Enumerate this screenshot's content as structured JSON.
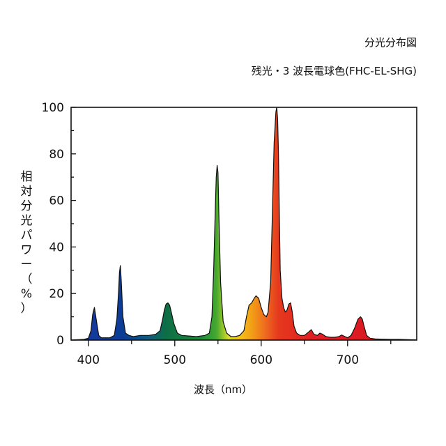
{
  "header": {
    "title": "分光分布図",
    "subtitle": "残光・3 波長電球色(FHC-EL-SHG)"
  },
  "chart_data": {
    "type": "area",
    "xlabel": "波長（nm）",
    "ylabel": "相対分光パワー（%）",
    "ylabel_chars": [
      "相",
      "対",
      "分",
      "光",
      "パ",
      "ワ",
      "ー",
      "（",
      "%",
      "）"
    ],
    "xlim": [
      380,
      780
    ],
    "ylim": [
      0,
      100
    ],
    "x_ticks": [
      400,
      500,
      600,
      700
    ],
    "y_ticks": [
      0,
      20,
      40,
      60,
      80,
      100
    ],
    "grid": false,
    "fill": "visible-spectrum colors",
    "series": [
      {
        "x": [
          380,
          395,
          400,
          403,
          405,
          407,
          409,
          412,
          415,
          420,
          425,
          430,
          433,
          435,
          436,
          437,
          438,
          440,
          443,
          447,
          452,
          460,
          470,
          478,
          483,
          486,
          488,
          490,
          492,
          494,
          496,
          499,
          503,
          508,
          515,
          525,
          535,
          540,
          543,
          545,
          547,
          548,
          549,
          550,
          551,
          553,
          556,
          560,
          565,
          570,
          575,
          580,
          583,
          586,
          589,
          592,
          594,
          597,
          600,
          603,
          606,
          608,
          611,
          613,
          615,
          617,
          618,
          619,
          620,
          621,
          622,
          624,
          626,
          628,
          630,
          632,
          634,
          636,
          638,
          641,
          645,
          650,
          655,
          658,
          661,
          665,
          668,
          671,
          675,
          680,
          685,
          690,
          693,
          697,
          700,
          704,
          708,
          712,
          715,
          717,
          719,
          722,
          726,
          732,
          740,
          750,
          760,
          770,
          780
        ],
        "y": [
          0,
          0.3,
          0.8,
          4,
          11,
          14,
          9,
          2,
          1,
          1,
          1,
          2,
          9,
          21,
          29,
          32,
          26,
          10,
          3,
          2,
          1.5,
          2,
          2,
          2.5,
          4,
          9,
          13,
          15.5,
          16,
          15,
          12,
          7,
          3,
          2,
          1.8,
          1.5,
          2,
          3,
          10,
          30,
          58,
          70,
          75,
          72,
          55,
          25,
          8,
          3,
          1.5,
          1.5,
          2,
          4,
          10,
          15,
          16,
          18,
          19,
          18,
          14,
          11,
          10,
          12,
          25,
          55,
          85,
          98,
          100,
          95,
          80,
          55,
          30,
          18,
          14,
          12,
          13,
          15.5,
          16,
          12,
          6,
          3,
          2,
          2,
          3.5,
          4.5,
          2.5,
          2,
          3,
          2.5,
          1.5,
          1.2,
          1.2,
          1.5,
          2.2,
          1.5,
          1,
          2,
          5,
          9,
          10,
          9,
          6,
          2,
          0.8,
          0.5,
          0.4,
          0.3,
          0.3,
          0.2,
          0.1
        ]
      }
    ]
  }
}
